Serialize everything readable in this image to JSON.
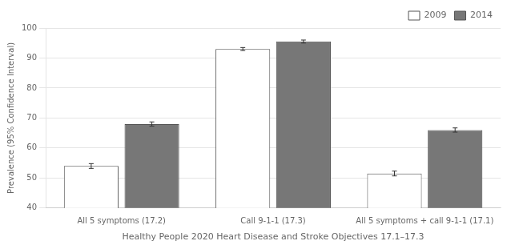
{
  "chart_data": {
    "type": "bar",
    "categories": [
      "All 5 symptoms (17.2)",
      "Call 9-1-1 (17.3)",
      "All 5 symptoms + call 9-1-1 (17.1)"
    ],
    "series": [
      {
        "name": "2009",
        "color": "#ffffff",
        "values": [
          54.0,
          93.0,
          51.5
        ],
        "errors": [
          0.8,
          0.5,
          0.8
        ]
      },
      {
        "name": "2014",
        "color": "#777777",
        "values": [
          68.0,
          95.5,
          66.0
        ],
        "errors": [
          0.7,
          0.5,
          0.7
        ]
      }
    ],
    "xlabel": "Healthy People 2020 Heart Disease and Stroke Objectives 17.1–17.3",
    "ylabel": "Prevalence (95% Confidence Interval)",
    "ylim": [
      40,
      100
    ],
    "yticks": [
      40,
      50,
      60,
      70,
      80,
      90,
      100
    ],
    "grid": true,
    "legend": "upper right"
  }
}
